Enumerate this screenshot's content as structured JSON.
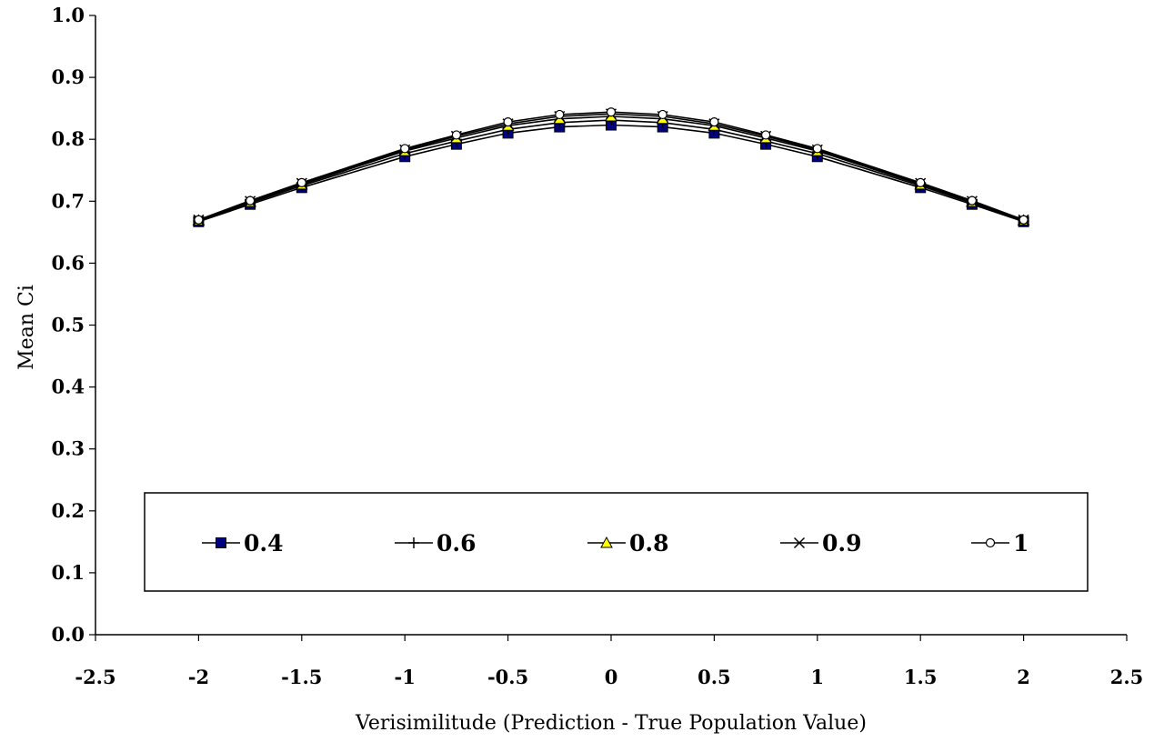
{
  "chart_data": {
    "type": "line",
    "title": "",
    "xlabel": "Verisimilitude (Prediction - True Population Value)",
    "ylabel": "Mean Ci",
    "xlim": [
      -2.5,
      2.5
    ],
    "ylim": [
      0.0,
      1.0
    ],
    "x_ticks": [
      "-2.5",
      "-2",
      "-1.5",
      "-1",
      "-0.5",
      "0",
      "0.5",
      "1",
      "1.5",
      "2",
      "2.5"
    ],
    "y_ticks": [
      "0.0",
      "0.1",
      "0.2",
      "0.3",
      "0.4",
      "0.5",
      "0.6",
      "0.7",
      "0.8",
      "0.9",
      "1.0"
    ],
    "grid": false,
    "legend_position": "bottom",
    "x": [
      -2,
      -1.75,
      -1.5,
      -1,
      -0.75,
      -0.5,
      -0.25,
      0,
      0.25,
      0.5,
      0.75,
      1,
      1.5,
      1.75,
      2
    ],
    "series": [
      {
        "name": "0.4",
        "marker": "square",
        "color": "#00007f",
        "values": [
          0.667,
          0.695,
          0.722,
          0.772,
          0.792,
          0.81,
          0.82,
          0.823,
          0.82,
          0.81,
          0.792,
          0.772,
          0.722,
          0.695,
          0.667
        ]
      },
      {
        "name": "0.6",
        "marker": "plus",
        "color": "#000000",
        "values": [
          0.668,
          0.697,
          0.725,
          0.777,
          0.797,
          0.816,
          0.827,
          0.831,
          0.827,
          0.816,
          0.797,
          0.777,
          0.725,
          0.697,
          0.668
        ]
      },
      {
        "name": "0.8",
        "marker": "triangle",
        "color": "#ffff00",
        "values": [
          0.669,
          0.699,
          0.727,
          0.781,
          0.802,
          0.822,
          0.833,
          0.837,
          0.833,
          0.822,
          0.802,
          0.781,
          0.727,
          0.699,
          0.669
        ]
      },
      {
        "name": "0.9",
        "marker": "x",
        "color": "#000000",
        "values": [
          0.67,
          0.7,
          0.729,
          0.783,
          0.805,
          0.825,
          0.837,
          0.841,
          0.837,
          0.825,
          0.805,
          0.783,
          0.729,
          0.7,
          0.67
        ]
      },
      {
        "name": "1",
        "marker": "circle",
        "color": "#ffffff",
        "values": [
          0.67,
          0.701,
          0.73,
          0.785,
          0.807,
          0.828,
          0.84,
          0.844,
          0.84,
          0.828,
          0.807,
          0.785,
          0.73,
          0.701,
          0.67
        ]
      }
    ]
  }
}
